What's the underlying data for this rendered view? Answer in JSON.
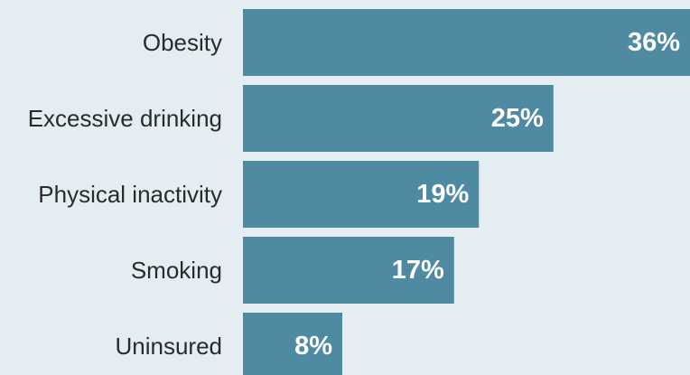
{
  "chart_data": {
    "type": "bar",
    "orientation": "horizontal",
    "categories": [
      "Obesity",
      "Excessive drinking",
      "Physical inactivity",
      "Smoking",
      "Uninsured"
    ],
    "values": [
      36,
      25,
      19,
      17,
      8
    ],
    "value_labels": [
      "36%",
      "25%",
      "19%",
      "17%",
      "8%"
    ],
    "title": "",
    "xlabel": "",
    "ylabel": "",
    "xlim": [
      0,
      36
    ],
    "grid": false,
    "legend": "none",
    "colors": {
      "bar": "#4e8aa1",
      "background": "#e3edf2",
      "category_text": "#2b2b2b",
      "value_text": "#ffffff"
    }
  }
}
